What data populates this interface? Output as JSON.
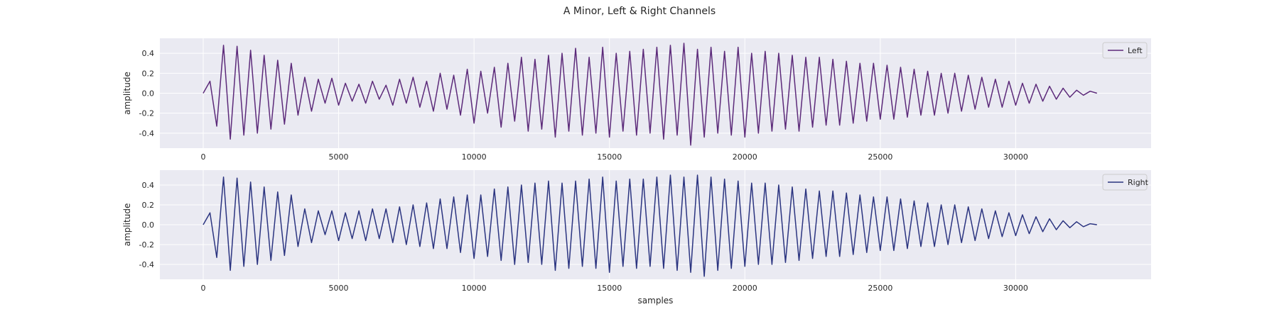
{
  "figure": {
    "title": "A Minor, Left & Right Channels"
  },
  "chart_data": [
    {
      "type": "line",
      "title": "",
      "xlabel": "",
      "ylabel": "amplitude",
      "xlim": [
        -1600,
        35000
      ],
      "ylim": [
        -0.55,
        0.55
      ],
      "xticks": [
        0,
        5000,
        10000,
        15000,
        20000,
        25000,
        30000
      ],
      "xtick_labels": [
        "0",
        "5000",
        "10000",
        "15000",
        "20000",
        "25000",
        "30000"
      ],
      "yticks": [
        -0.4,
        -0.2,
        0.0,
        0.2,
        0.4
      ],
      "ytick_labels": [
        "-0.4",
        "-0.2",
        "0.0",
        "0.2",
        "0.4"
      ],
      "grid": true,
      "legend": "top-right",
      "series": [
        {
          "name": "Left",
          "color": "#5c2a7a",
          "x": [
            0,
            250,
            500,
            750,
            1000,
            1250,
            1500,
            1750,
            2000,
            2250,
            2500,
            2750,
            3000,
            3250,
            3500,
            3750,
            4000,
            4250,
            4500,
            4750,
            5000,
            5250,
            5500,
            5750,
            6000,
            6250,
            6500,
            6750,
            7000,
            7250,
            7500,
            7750,
            8000,
            8250,
            8500,
            8750,
            9000,
            9250,
            9500,
            9750,
            10000,
            10250,
            10500,
            10750,
            11000,
            11250,
            11500,
            11750,
            12000,
            12250,
            12500,
            12750,
            13000,
            13250,
            13500,
            13750,
            14000,
            14250,
            14500,
            14750,
            15000,
            15250,
            15500,
            15750,
            16000,
            16250,
            16500,
            16750,
            17000,
            17250,
            17500,
            17750,
            18000,
            18250,
            18500,
            18750,
            19000,
            19250,
            19500,
            19750,
            20000,
            20250,
            20500,
            20750,
            21000,
            21250,
            21500,
            21750,
            22000,
            22250,
            22500,
            22750,
            23000,
            23250,
            23500,
            23750,
            24000,
            24250,
            24500,
            24750,
            25000,
            25250,
            25500,
            25750,
            26000,
            26250,
            26500,
            26750,
            27000,
            27250,
            27500,
            27750,
            28000,
            28250,
            28500,
            28750,
            29000,
            29250,
            29500,
            29750,
            30000,
            30250,
            30500,
            30750,
            31000,
            31250,
            31500,
            31750,
            32000,
            32250,
            32500,
            32750,
            33000
          ],
          "y": [
            0.0,
            0.12,
            -0.33,
            0.48,
            -0.46,
            0.47,
            -0.42,
            0.43,
            -0.4,
            0.38,
            -0.36,
            0.33,
            -0.31,
            0.3,
            -0.22,
            0.16,
            -0.18,
            0.14,
            -0.1,
            0.15,
            -0.12,
            0.1,
            -0.08,
            0.09,
            -0.1,
            0.12,
            -0.06,
            0.08,
            -0.12,
            0.14,
            -0.1,
            0.16,
            -0.14,
            0.12,
            -0.18,
            0.2,
            -0.16,
            0.18,
            -0.22,
            0.24,
            -0.3,
            0.22,
            -0.2,
            0.26,
            -0.34,
            0.3,
            -0.28,
            0.36,
            -0.38,
            0.34,
            -0.36,
            0.38,
            -0.44,
            0.4,
            -0.38,
            0.45,
            -0.42,
            0.36,
            -0.4,
            0.46,
            -0.44,
            0.4,
            -0.38,
            0.42,
            -0.42,
            0.44,
            -0.4,
            0.46,
            -0.46,
            0.48,
            -0.42,
            0.5,
            -0.52,
            0.44,
            -0.44,
            0.46,
            -0.4,
            0.42,
            -0.42,
            0.46,
            -0.44,
            0.4,
            -0.4,
            0.42,
            -0.38,
            0.4,
            -0.36,
            0.38,
            -0.38,
            0.36,
            -0.34,
            0.36,
            -0.32,
            0.34,
            -0.32,
            0.32,
            -0.3,
            0.3,
            -0.28,
            0.3,
            -0.26,
            0.28,
            -0.26,
            0.26,
            -0.24,
            0.24,
            -0.22,
            0.22,
            -0.22,
            0.2,
            -0.2,
            0.2,
            -0.18,
            0.18,
            -0.16,
            0.16,
            -0.14,
            0.14,
            -0.14,
            0.12,
            -0.12,
            0.1,
            -0.1,
            0.09,
            -0.08,
            0.07,
            -0.06,
            0.05,
            -0.04,
            0.03,
            -0.02,
            0.02,
            0.0
          ]
        }
      ]
    },
    {
      "type": "line",
      "title": "",
      "xlabel": "samples",
      "ylabel": "amplitude",
      "xlim": [
        -1600,
        35000
      ],
      "ylim": [
        -0.55,
        0.55
      ],
      "xticks": [
        0,
        5000,
        10000,
        15000,
        20000,
        25000,
        30000
      ],
      "xtick_labels": [
        "0",
        "5000",
        "10000",
        "15000",
        "20000",
        "25000",
        "30000"
      ],
      "yticks": [
        -0.4,
        -0.2,
        0.0,
        0.2,
        0.4
      ],
      "ytick_labels": [
        "-0.4",
        "-0.2",
        "0.0",
        "0.2",
        "0.4"
      ],
      "grid": true,
      "legend": "top-right",
      "series": [
        {
          "name": "Right",
          "color": "#2b3480",
          "x": [
            0,
            250,
            500,
            750,
            1000,
            1250,
            1500,
            1750,
            2000,
            2250,
            2500,
            2750,
            3000,
            3250,
            3500,
            3750,
            4000,
            4250,
            4500,
            4750,
            5000,
            5250,
            5500,
            5750,
            6000,
            6250,
            6500,
            6750,
            7000,
            7250,
            7500,
            7750,
            8000,
            8250,
            8500,
            8750,
            9000,
            9250,
            9500,
            9750,
            10000,
            10250,
            10500,
            10750,
            11000,
            11250,
            11500,
            11750,
            12000,
            12250,
            12500,
            12750,
            13000,
            13250,
            13500,
            13750,
            14000,
            14250,
            14500,
            14750,
            15000,
            15250,
            15500,
            15750,
            16000,
            16250,
            16500,
            16750,
            17000,
            17250,
            17500,
            17750,
            18000,
            18250,
            18500,
            18750,
            19000,
            19250,
            19500,
            19750,
            20000,
            20250,
            20500,
            20750,
            21000,
            21250,
            21500,
            21750,
            22000,
            22250,
            22500,
            22750,
            23000,
            23250,
            23500,
            23750,
            24000,
            24250,
            24500,
            24750,
            25000,
            25250,
            25500,
            25750,
            26000,
            26250,
            26500,
            26750,
            27000,
            27250,
            27500,
            27750,
            28000,
            28250,
            28500,
            28750,
            29000,
            29250,
            29500,
            29750,
            30000,
            30250,
            30500,
            30750,
            31000,
            31250,
            31500,
            31750,
            32000,
            32250,
            32500,
            32750,
            33000
          ],
          "y": [
            0.0,
            0.12,
            -0.33,
            0.48,
            -0.46,
            0.47,
            -0.42,
            0.43,
            -0.4,
            0.38,
            -0.36,
            0.33,
            -0.31,
            0.3,
            -0.22,
            0.16,
            -0.18,
            0.14,
            -0.1,
            0.14,
            -0.16,
            0.12,
            -0.14,
            0.14,
            -0.16,
            0.16,
            -0.14,
            0.16,
            -0.18,
            0.18,
            -0.2,
            0.2,
            -0.22,
            0.22,
            -0.24,
            0.26,
            -0.24,
            0.28,
            -0.28,
            0.3,
            -0.34,
            0.3,
            -0.32,
            0.36,
            -0.36,
            0.38,
            -0.4,
            0.4,
            -0.38,
            0.42,
            -0.4,
            0.44,
            -0.46,
            0.42,
            -0.44,
            0.44,
            -0.42,
            0.46,
            -0.44,
            0.48,
            -0.48,
            0.44,
            -0.42,
            0.46,
            -0.44,
            0.46,
            -0.42,
            0.48,
            -0.44,
            0.5,
            -0.46,
            0.48,
            -0.48,
            0.5,
            -0.52,
            0.48,
            -0.46,
            0.46,
            -0.44,
            0.44,
            -0.42,
            0.42,
            -0.4,
            0.42,
            -0.4,
            0.4,
            -0.38,
            0.38,
            -0.36,
            0.36,
            -0.34,
            0.34,
            -0.32,
            0.34,
            -0.32,
            0.32,
            -0.3,
            0.3,
            -0.28,
            0.28,
            -0.26,
            0.28,
            -0.26,
            0.26,
            -0.24,
            0.24,
            -0.22,
            0.22,
            -0.22,
            0.2,
            -0.2,
            0.2,
            -0.18,
            0.18,
            -0.16,
            0.16,
            -0.14,
            0.14,
            -0.12,
            0.12,
            -0.11,
            0.1,
            -0.09,
            0.08,
            -0.07,
            0.06,
            -0.05,
            0.04,
            -0.03,
            0.03,
            -0.02,
            0.01,
            0.0
          ]
        }
      ]
    }
  ]
}
